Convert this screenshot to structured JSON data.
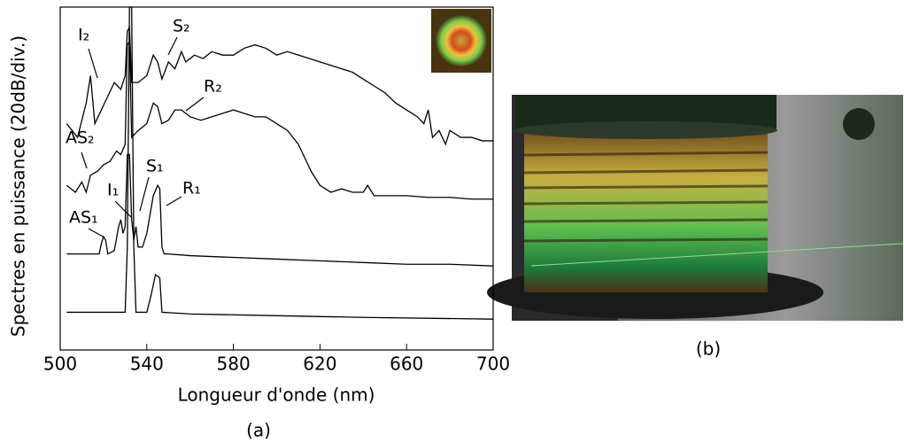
{
  "chart_data": {
    "type": "line",
    "xlabel": "Longueur d'onde (nm)",
    "ylabel": "Spectres en puissance (20dB/div.)",
    "xlim": [
      500,
      700
    ],
    "xticks": [
      500,
      540,
      580,
      620,
      660,
      700
    ],
    "ylim": [
      0,
      100
    ],
    "annotations": [
      "I₂",
      "S₂",
      "R₂",
      "AS₂",
      "I₁",
      "S₁",
      "R₁",
      "AS₁"
    ],
    "series": [
      {
        "color": "#000000",
        "x": [
          503,
          508,
          512,
          514,
          516,
          519,
          522,
          525,
          528,
          530,
          531,
          532,
          533,
          536,
          540,
          543,
          545,
          547,
          550,
          553,
          556,
          558,
          562,
          566,
          570,
          575,
          580,
          585,
          590,
          595,
          600,
          605,
          610,
          615,
          620,
          625,
          630,
          635,
          640,
          645,
          650,
          655,
          660,
          665,
          668,
          670,
          672,
          675,
          678,
          680,
          685,
          690,
          695,
          700
        ],
        "values": [
          66,
          62,
          72,
          80,
          66,
          70,
          74,
          78,
          76,
          80,
          93,
          94,
          78,
          78,
          80,
          86,
          84,
          79,
          84,
          82,
          87,
          84,
          86,
          85,
          87,
          86,
          86,
          88,
          89,
          88,
          86,
          87,
          86,
          85,
          84,
          83,
          82,
          81,
          79,
          77,
          75,
          72,
          70,
          68,
          66,
          70,
          62,
          64,
          60,
          64,
          62,
          62,
          61,
          61
        ]
      },
      {
        "color": "#000000",
        "x": [
          503,
          507,
          510,
          512,
          514,
          517,
          520,
          523,
          526,
          528,
          530,
          531,
          532,
          533,
          536,
          540,
          543,
          545,
          547,
          550,
          553,
          556,
          560,
          565,
          570,
          575,
          580,
          585,
          590,
          595,
          600,
          605,
          610,
          613,
          616,
          620,
          625,
          630,
          635,
          640,
          642,
          645,
          650,
          660,
          670,
          680,
          690,
          700
        ],
        "values": [
          48,
          46,
          49,
          46,
          51,
          52,
          54,
          55,
          58,
          57,
          60,
          89,
          90,
          62,
          64,
          66,
          72,
          71,
          66,
          67,
          70,
          70,
          68,
          67,
          68,
          69,
          70,
          69,
          68,
          68,
          66,
          64,
          60,
          56,
          52,
          48,
          46,
          47,
          46,
          46,
          48,
          45,
          45,
          45,
          44.5,
          44.5,
          44,
          44
        ]
      },
      {
        "color": "#000000",
        "x": [
          503,
          510,
          515,
          518,
          519,
          520,
          521,
          522,
          525,
          527,
          528,
          529,
          530,
          531,
          532,
          533,
          534,
          535,
          536,
          538,
          540,
          543,
          545,
          546,
          547,
          548,
          550,
          560,
          580,
          600,
          620,
          640,
          660,
          680,
          700
        ],
        "values": [
          28,
          28,
          28,
          28,
          31,
          33,
          32,
          28,
          29,
          36,
          38,
          34,
          36,
          57,
          57,
          38,
          32,
          36,
          30,
          30,
          34,
          45,
          48,
          47,
          30,
          28,
          28,
          27.5,
          27,
          26.5,
          26,
          25.5,
          25,
          25,
          24.5
        ]
      },
      {
        "color": "#000000",
        "x": [
          503,
          520,
          530,
          531,
          532,
          533,
          534,
          535,
          540,
          542,
          544,
          546,
          547,
          560,
          600,
          640,
          700
        ],
        "values": [
          11,
          11,
          11,
          30,
          100,
          100,
          30,
          11,
          11,
          16,
          22,
          21,
          11,
          10.5,
          10,
          9.5,
          9
        ]
      }
    ]
  },
  "captions": [
    "(a)",
    "(b)"
  ]
}
